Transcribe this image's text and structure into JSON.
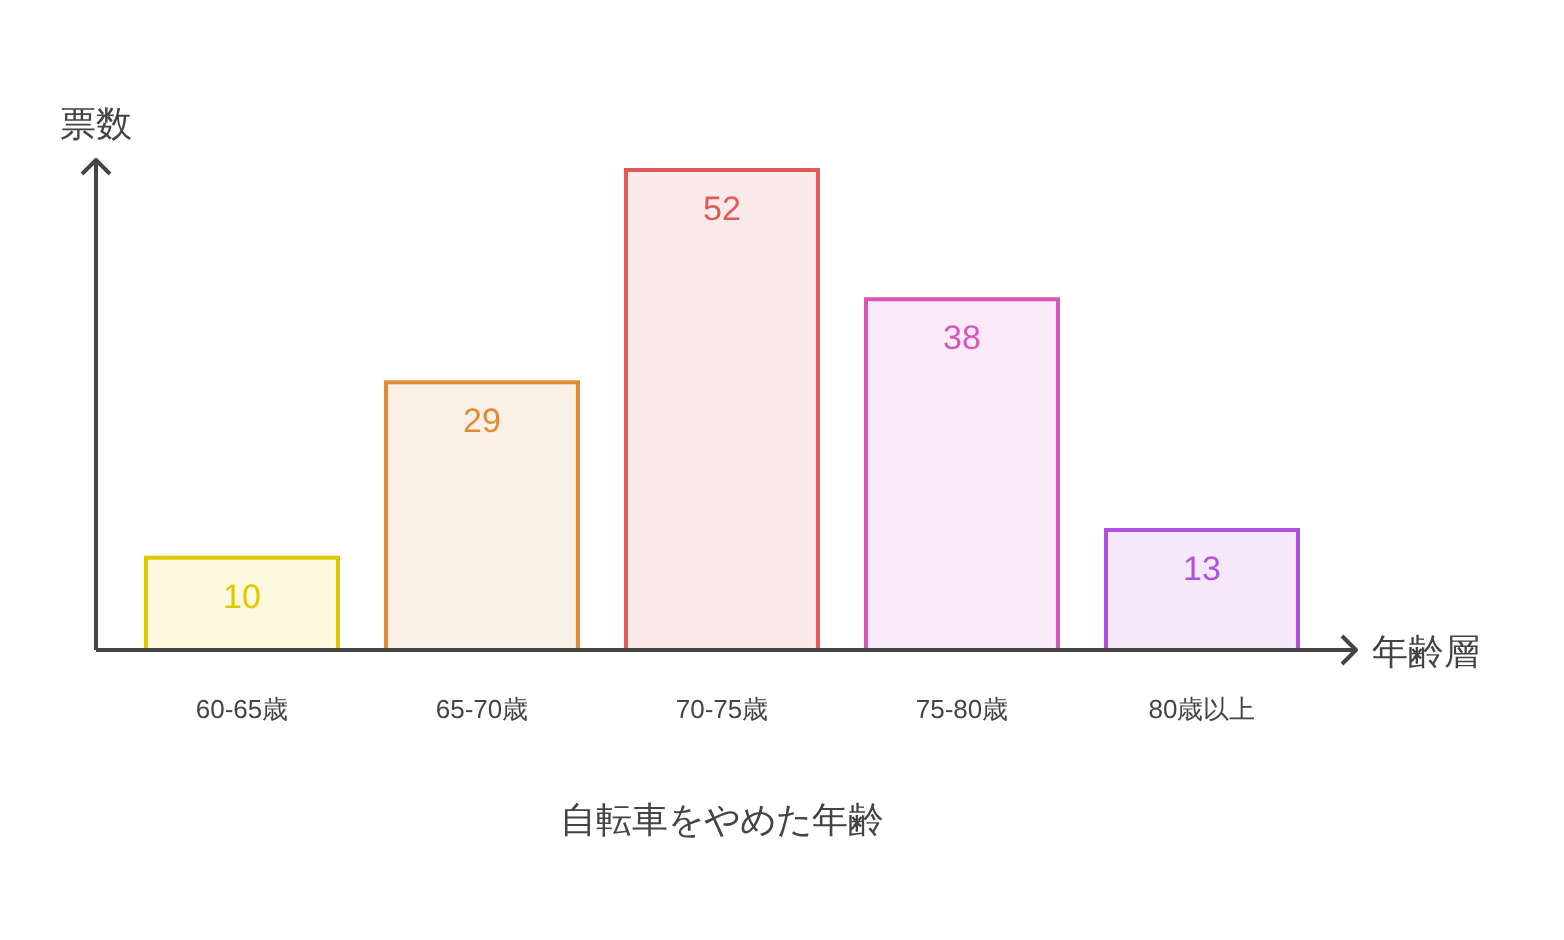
{
  "chart_data": {
    "type": "bar",
    "title": "自転車をやめた年齢",
    "xlabel": "年齢層",
    "ylabel": "票数",
    "categories": [
      "60-65歳",
      "65-70歳",
      "70-75歳",
      "75-80歳",
      "80歳以上"
    ],
    "values": [
      10,
      29,
      52,
      38,
      13
    ],
    "colors": [
      "#e0c800",
      "#e08a3a",
      "#e05a5a",
      "#d655b8",
      "#b050e0"
    ],
    "data_labels": true
  }
}
